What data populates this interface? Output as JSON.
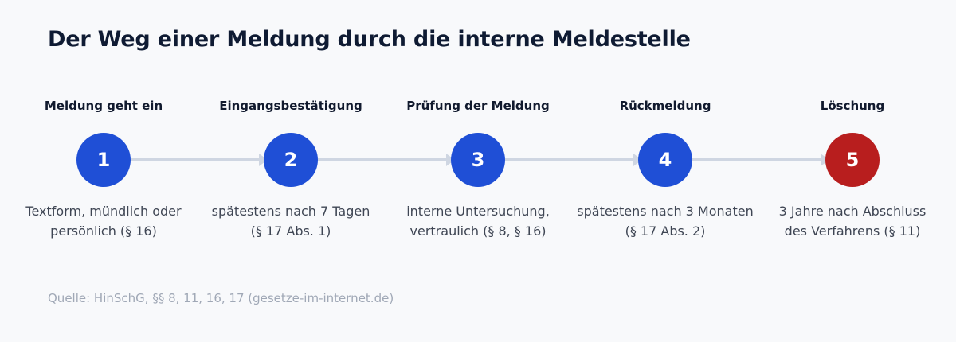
{
  "title": "Der Weg einer Meldung durch die interne Meldestelle",
  "steps": [
    {
      "number": "1",
      "heading": "Meldung geht ein",
      "description": "Textform, mündlich oder\npersönlich (§ 16)"
    },
    {
      "number": "2",
      "heading": "Eingangsbestätigung",
      "description": "spätestens nach 7 Tagen\n(§ 17 Abs. 1)"
    },
    {
      "number": "3",
      "heading": "Prüfung der Meldung",
      "description": "interne Untersuchung,\nvertraulich (§ 8, § 16)"
    },
    {
      "number": "4",
      "heading": "Rückmeldung",
      "description": "spätestens nach 3 Monaten\n(§ 17 Abs. 2)"
    },
    {
      "number": "5",
      "heading": "Löschung",
      "description": "3 Jahre nach Abschluss\ndes Verfahrens (§ 11)"
    }
  ],
  "source": "Quelle: HinSchG, §§ 8, 11, 16, 17 (gesetze-im-internet.de)",
  "colors": {
    "step_circle": "#1f4fd6",
    "final_circle": "#b81e1e",
    "connector": "#cfd6e2"
  }
}
